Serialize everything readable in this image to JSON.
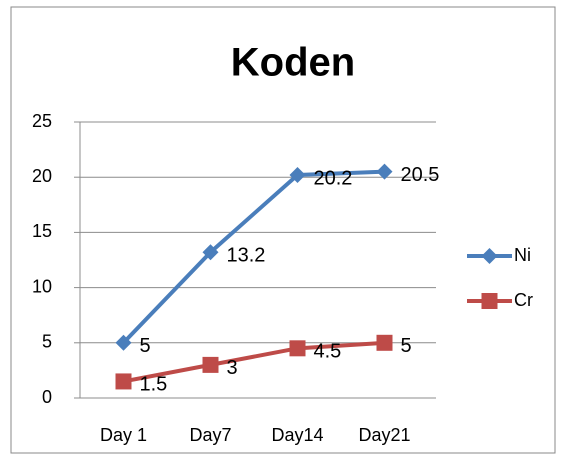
{
  "chart_data": {
    "type": "line",
    "title": "Koden",
    "categories": [
      "Day 1",
      "Day7",
      "Day14",
      "Day21"
    ],
    "series": [
      {
        "name": "Ni",
        "color": "#4a7ebb",
        "marker": "diamond",
        "values": [
          5,
          13.2,
          20.2,
          20.5
        ]
      },
      {
        "name": "Cr",
        "color": "#be4b48",
        "marker": "square",
        "values": [
          1.5,
          3,
          4.5,
          5
        ]
      }
    ],
    "ylim": [
      0,
      25
    ],
    "yticks": [
      0,
      5,
      10,
      15,
      20,
      25
    ],
    "grid": true,
    "legend": "right"
  }
}
